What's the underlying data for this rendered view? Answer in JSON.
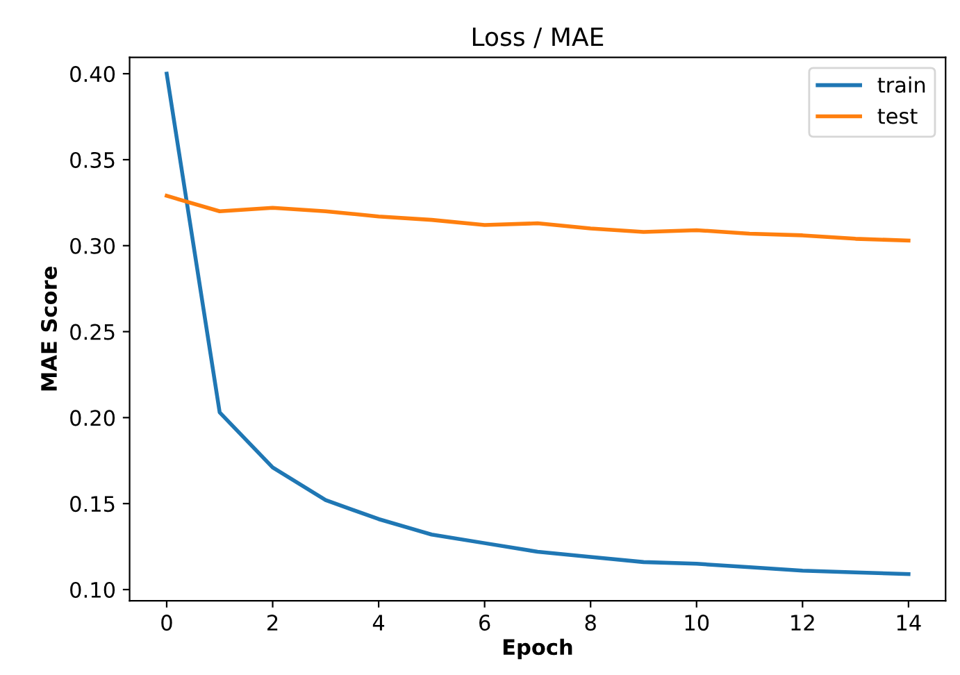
{
  "chart_data": {
    "type": "line",
    "title": "Loss / MAE",
    "xlabel": "Epoch",
    "ylabel": "MAE Score",
    "x": [
      0,
      1,
      2,
      3,
      4,
      5,
      6,
      7,
      8,
      9,
      10,
      11,
      12,
      13,
      14
    ],
    "series": [
      {
        "name": "train",
        "color": "#1f77b4",
        "values": [
          0.4,
          0.203,
          0.171,
          0.152,
          0.141,
          0.132,
          0.127,
          0.122,
          0.119,
          0.116,
          0.115,
          0.113,
          0.111,
          0.11,
          0.109
        ]
      },
      {
        "name": "test",
        "color": "#ff7f0e",
        "values": [
          0.329,
          0.32,
          0.322,
          0.32,
          0.317,
          0.315,
          0.312,
          0.313,
          0.31,
          0.308,
          0.309,
          0.307,
          0.306,
          0.304,
          0.303
        ]
      }
    ],
    "xlim": [
      -0.7,
      14.7
    ],
    "xticks": [
      0,
      2,
      4,
      6,
      8,
      10,
      12,
      14
    ],
    "ylim": [
      0.0935,
      0.4095
    ],
    "yticks": [
      {
        "value": 0.1,
        "label": "0.10"
      },
      {
        "value": 0.15,
        "label": "0.15"
      },
      {
        "value": 0.2,
        "label": "0.20"
      },
      {
        "value": 0.25,
        "label": "0.25"
      },
      {
        "value": 0.3,
        "label": "0.30"
      },
      {
        "value": 0.35,
        "label": "0.35"
      },
      {
        "value": 0.4,
        "label": "0.40"
      }
    ],
    "legend": "top right",
    "grid": false
  }
}
